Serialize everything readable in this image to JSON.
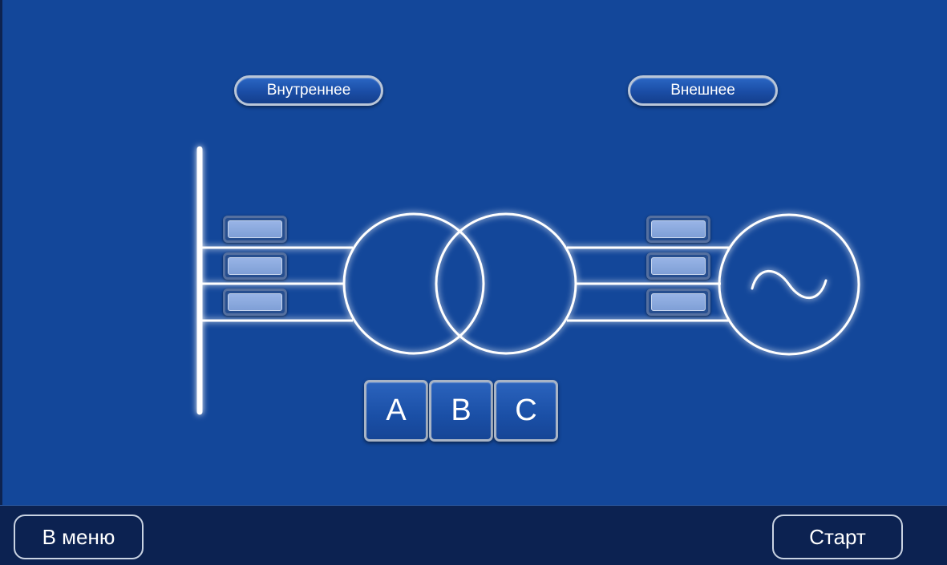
{
  "mode_buttons": {
    "internal": "Внутреннее",
    "external": "Внешнее"
  },
  "phases": [
    "A",
    "B",
    "C"
  ],
  "generator_symbol": "~",
  "footer": {
    "menu_label": "В меню",
    "start_label": "Старт"
  },
  "colors": {
    "background": "#13479a",
    "footer": "#0c2251",
    "line": "#ffffff",
    "switch_fill": "#8aa8de"
  },
  "icons": {
    "generator": "ac-generator-icon",
    "transformer": "transformer-icon",
    "busbar": "busbar-icon"
  }
}
